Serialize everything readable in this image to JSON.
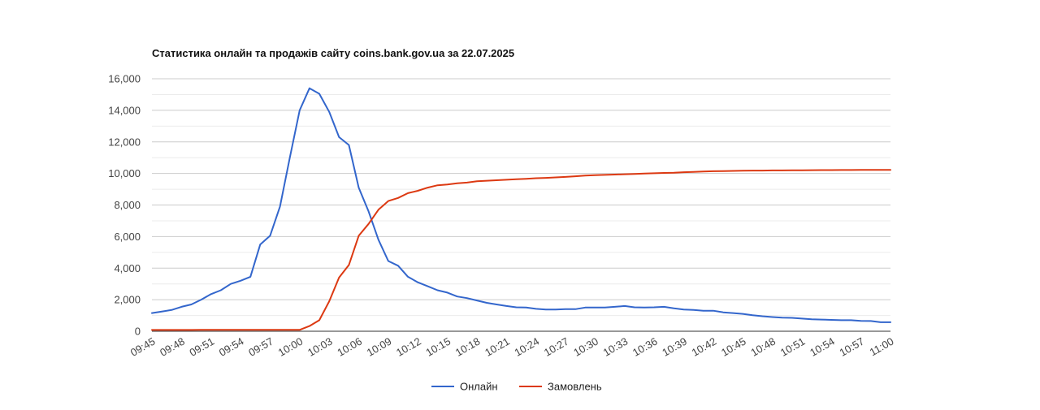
{
  "chart_data": {
    "type": "line",
    "title": "Статистика онлайн та продажів сайту coins.bank.gov.ua за 22.07.2025",
    "xlabel": "",
    "ylabel": "",
    "ylim": [
      0,
      16000
    ],
    "yticks": [
      0,
      2000,
      4000,
      6000,
      8000,
      10000,
      12000,
      14000,
      16000
    ],
    "ytick_labels": [
      "0",
      "2,000",
      "4,000",
      "6,000",
      "8,000",
      "10,000",
      "12,000",
      "14,000",
      "16,000"
    ],
    "x_labels": [
      "09:45",
      "09:48",
      "09:51",
      "09:54",
      "09:57",
      "10:00",
      "10:03",
      "10:06",
      "10:09",
      "10:12",
      "10:15",
      "10:18",
      "10:21",
      "10:24",
      "10:27",
      "10:30",
      "10:33",
      "10:36",
      "10:39",
      "10:42",
      "10:45",
      "10:48",
      "10:51",
      "10:54",
      "10:57",
      "11:00"
    ],
    "x_minutes": [
      0,
      1,
      2,
      3,
      4,
      5,
      6,
      7,
      8,
      9,
      10,
      11,
      12,
      13,
      14,
      15,
      16,
      17,
      18,
      19,
      20,
      21,
      22,
      23,
      24,
      25,
      26,
      27,
      28,
      29,
      30,
      31,
      32,
      33,
      34,
      35,
      36,
      37,
      38,
      39,
      40,
      41,
      42,
      43,
      44,
      45,
      46,
      47,
      48,
      49,
      50,
      51,
      52,
      53,
      54,
      55,
      56,
      57,
      58,
      59,
      60,
      61,
      62,
      63,
      64,
      65,
      66,
      67,
      68,
      69,
      70,
      71,
      72,
      73,
      74,
      75
    ],
    "grid": true,
    "legend": "bottom",
    "series": [
      {
        "name": "Онлайн",
        "color": "#3366cc",
        "values": [
          1150,
          1250,
          1350,
          1550,
          1700,
          2000,
          2350,
          2600,
          3000,
          3200,
          3450,
          5500,
          6050,
          7900,
          11000,
          14000,
          15400,
          15050,
          13900,
          12300,
          11800,
          9100,
          7600,
          5800,
          4450,
          4150,
          3450,
          3100,
          2850,
          2600,
          2450,
          2200,
          2100,
          1950,
          1800,
          1700,
          1600,
          1520,
          1500,
          1420,
          1380,
          1380,
          1400,
          1400,
          1500,
          1500,
          1500,
          1550,
          1600,
          1520,
          1500,
          1520,
          1550,
          1450,
          1380,
          1350,
          1300,
          1300,
          1200,
          1150,
          1100,
          1020,
          950,
          900,
          860,
          850,
          800,
          760,
          740,
          720,
          700,
          700,
          660,
          650,
          570,
          570
        ]
      },
      {
        "name": "Замовлень",
        "color": "#dc3912",
        "values": [
          80,
          80,
          80,
          80,
          80,
          90,
          90,
          90,
          90,
          90,
          90,
          90,
          90,
          90,
          90,
          90,
          330,
          700,
          1900,
          3400,
          4200,
          6050,
          6800,
          7700,
          8250,
          8450,
          8750,
          8900,
          9100,
          9250,
          9300,
          9380,
          9420,
          9500,
          9540,
          9570,
          9600,
          9630,
          9660,
          9700,
          9720,
          9750,
          9780,
          9820,
          9860,
          9890,
          9910,
          9930,
          9950,
          9970,
          9990,
          10010,
          10030,
          10050,
          10080,
          10100,
          10120,
          10140,
          10150,
          10160,
          10170,
          10180,
          10180,
          10190,
          10190,
          10200,
          10200,
          10205,
          10210,
          10210,
          10215,
          10215,
          10220,
          10220,
          10225,
          10230
        ]
      }
    ]
  }
}
